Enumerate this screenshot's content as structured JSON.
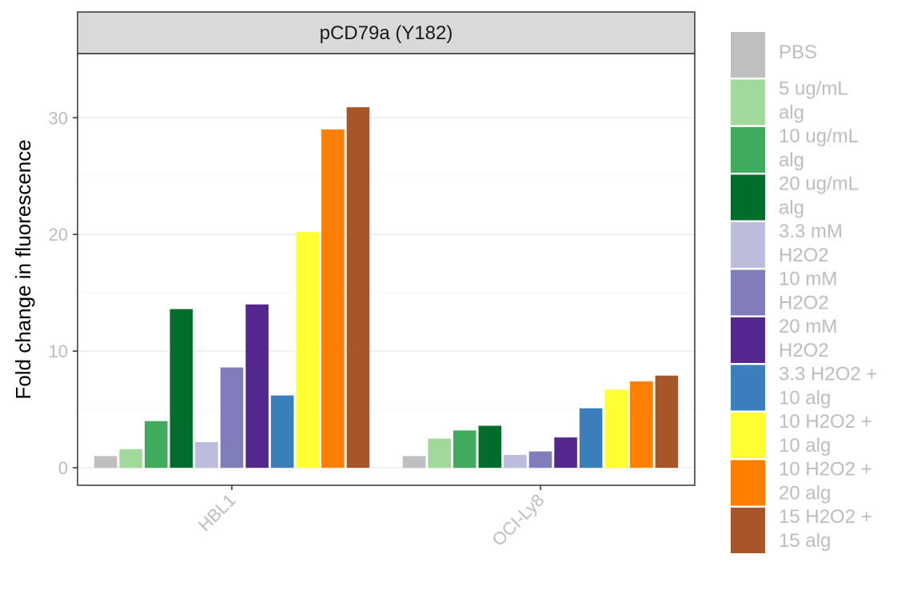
{
  "chart_data": {
    "type": "bar",
    "title": "pCD79a (Y182)",
    "xlabel": "",
    "ylabel": "Fold change in fluorescence",
    "categories": [
      "HBL1",
      "OCI-Ly8"
    ],
    "ylim": [
      -1.5,
      35.5
    ],
    "yticks": [
      0,
      10,
      20,
      30
    ],
    "grid": true,
    "legend_position": "right",
    "series": [
      {
        "name": "PBS",
        "color": "#BFBFBF",
        "values": [
          1.0,
          1.0
        ]
      },
      {
        "name": "5 ug/mL alg",
        "color": "#A1D99B",
        "values": [
          1.6,
          2.5
        ]
      },
      {
        "name": "10 ug/mL alg",
        "color": "#41AB5D",
        "values": [
          4.0,
          3.2
        ]
      },
      {
        "name": "20 ug/mL alg",
        "color": "#006D2C",
        "values": [
          13.6,
          3.6
        ]
      },
      {
        "name": "3.3 mM H2O2",
        "color": "#BCBDDC",
        "values": [
          2.2,
          1.1
        ]
      },
      {
        "name": "10 mM H2O2",
        "color": "#807DBA",
        "values": [
          8.6,
          1.4
        ]
      },
      {
        "name": "20 mM H2O2",
        "color": "#54278F",
        "values": [
          14.0,
          2.6
        ]
      },
      {
        "name": "3.3 H2O2 + 10 alg",
        "color": "#3A7FBB",
        "values": [
          6.2,
          5.1
        ]
      },
      {
        "name": "10 H2O2 + 10 alg",
        "color": "#FFFF33",
        "values": [
          20.2,
          6.7
        ]
      },
      {
        "name": "10 H2O2 + 20 alg",
        "color": "#FF7F00",
        "values": [
          29.0,
          7.4
        ]
      },
      {
        "name": "15 H2O2 + 15 alg",
        "color": "#A65628",
        "values": [
          30.9,
          7.9
        ]
      }
    ],
    "legend_lines": [
      [
        "PBS"
      ],
      [
        "5 ug/mL",
        "alg"
      ],
      [
        "10 ug/mL",
        "alg"
      ],
      [
        "20 ug/mL",
        "alg"
      ],
      [
        "3.3 mM",
        "H2O2"
      ],
      [
        "10 mM",
        "H2O2"
      ],
      [
        "20 mM",
        "H2O2"
      ],
      [
        "3.3 H2O2 +",
        "10 alg"
      ],
      [
        "10 H2O2 +",
        "10 alg"
      ],
      [
        "10 H2O2 +",
        "20 alg"
      ],
      [
        "15 H2O2 +",
        "15 alg"
      ]
    ]
  }
}
